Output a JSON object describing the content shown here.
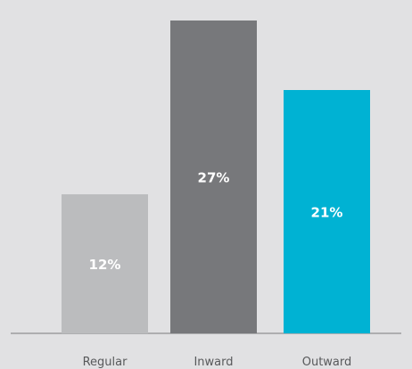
{
  "chart_data": {
    "type": "bar",
    "categories": [
      "Regular",
      "Inward",
      "Outward"
    ],
    "values": [
      12,
      27,
      21
    ],
    "value_labels": [
      "12%",
      "27%",
      "21%"
    ],
    "colors": [
      "#bbbcbe",
      "#77787b",
      "#00b2d3"
    ],
    "ylim": [
      0,
      28
    ],
    "grid": false,
    "legend": "none"
  }
}
